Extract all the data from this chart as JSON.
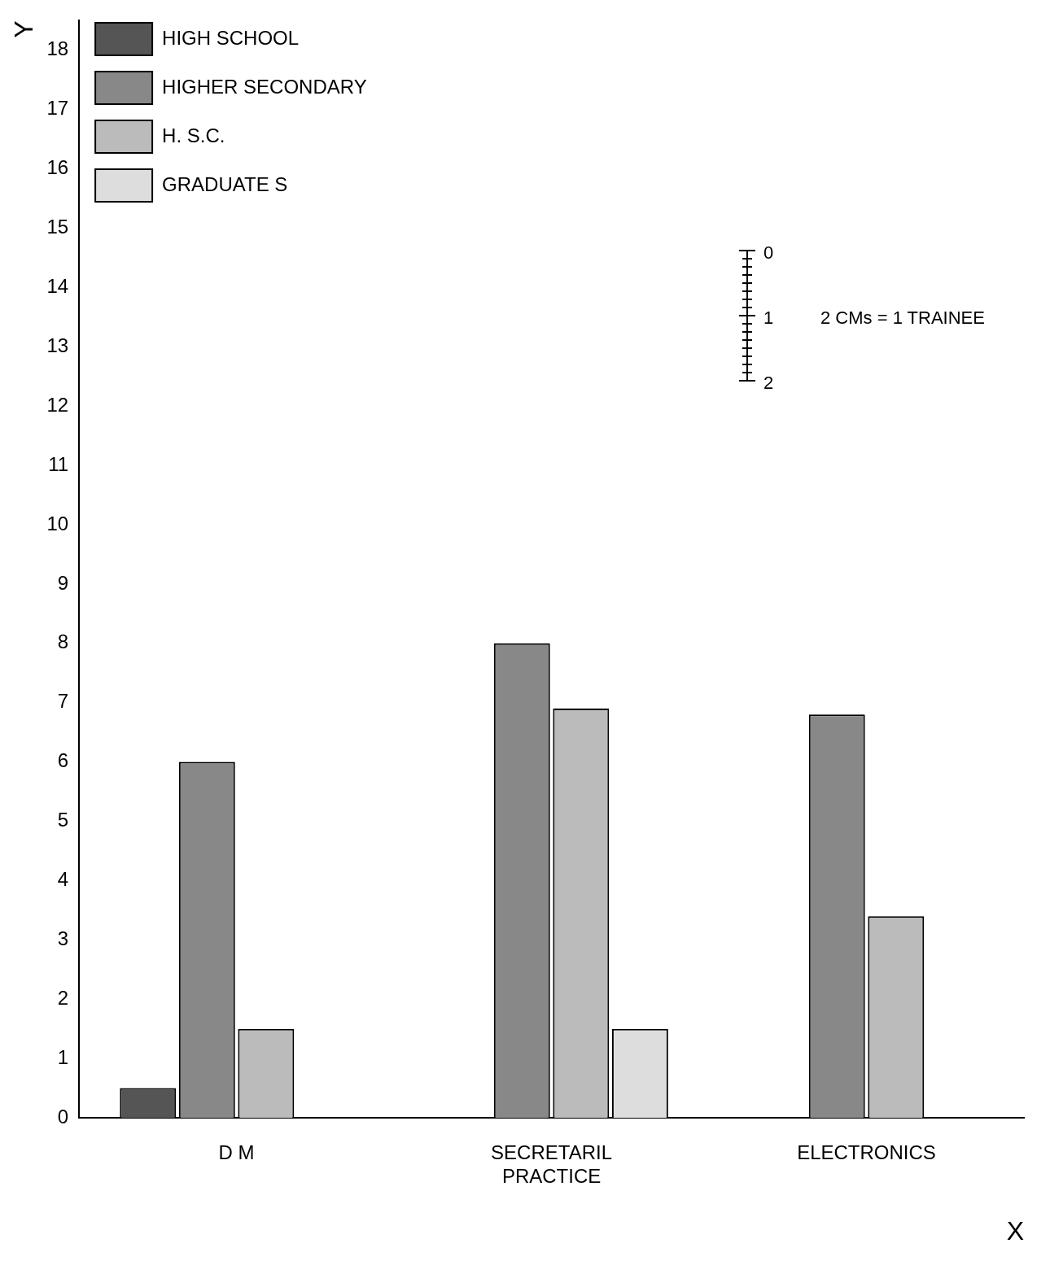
{
  "chart_data": {
    "type": "bar",
    "xlabel": "X",
    "ylabel": "Y",
    "categories": [
      "D M",
      "SECRETARIL\nPRACTICE",
      "ELECTRONICS"
    ],
    "series": [
      {
        "name": "HIGH SCHOOL",
        "color": "#555555",
        "values": [
          0.5,
          null,
          null
        ]
      },
      {
        "name": "HIGHER SECONDARY",
        "color": "#888888",
        "values": [
          6,
          8,
          6.8
        ]
      },
      {
        "name": "H. S.C.",
        "color": "#bbbbbb",
        "values": [
          1.5,
          6.9,
          3.4
        ]
      },
      {
        "name": "GRADUATE S",
        "color": "#dddddd",
        "values": [
          null,
          1.5,
          null
        ]
      }
    ],
    "ylim": [
      0,
      18.5
    ],
    "yticks": [
      0,
      1,
      2,
      3,
      4,
      5,
      6,
      7,
      8,
      9,
      10,
      11,
      12,
      13,
      14,
      15,
      16,
      17,
      18
    ],
    "grid": false,
    "legend": "top left",
    "annotations": [
      "0",
      "1",
      "2",
      "2 CMs = 1 TRAINEE"
    ]
  }
}
